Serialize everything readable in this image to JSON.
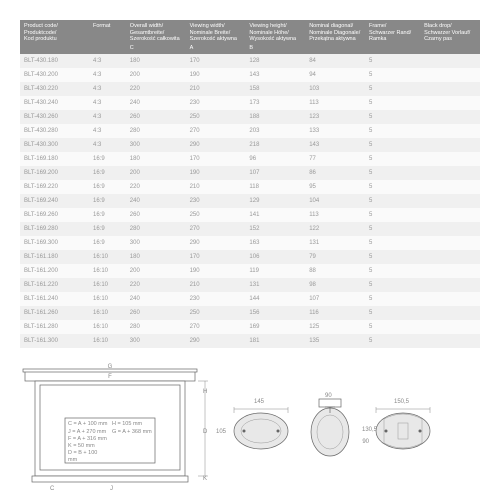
{
  "columns": [
    "Product code/\nProduktcode/\nKod produktu",
    "Format",
    "Overall width/\nGesamtbreite/\nSzerokość całkowita",
    "Viewing width/\nNominale Breite/\nSzerokość aktywna",
    "Viewing height/\nNominale Höhe/\nWysokość aktywna",
    "Nominal diagonal/\nNominale Diagonale/\nPrzekątna aktywna",
    "Frame/\nSchwarzer Rand/\nRamka",
    "Black drop/\nSchwarzer Vorlauf/\nCzarny pas"
  ],
  "subheader": [
    "",
    "",
    "C",
    "A",
    "B",
    "",
    "",
    ""
  ],
  "rows": [
    [
      "BLT-430.180",
      "4:3",
      "180",
      "170",
      "128",
      "84",
      "5",
      ""
    ],
    [
      "BLT-430.200",
      "4:3",
      "200",
      "190",
      "143",
      "94",
      "5",
      ""
    ],
    [
      "BLT-430.220",
      "4:3",
      "220",
      "210",
      "158",
      "103",
      "5",
      ""
    ],
    [
      "BLT-430.240",
      "4:3",
      "240",
      "230",
      "173",
      "113",
      "5",
      ""
    ],
    [
      "BLT-430.260",
      "4:3",
      "260",
      "250",
      "188",
      "123",
      "5",
      ""
    ],
    [
      "BLT-430.280",
      "4:3",
      "280",
      "270",
      "203",
      "133",
      "5",
      ""
    ],
    [
      "BLT-430.300",
      "4:3",
      "300",
      "290",
      "218",
      "143",
      "5",
      ""
    ],
    [
      "BLT-169.180",
      "16:9",
      "180",
      "170",
      "96",
      "77",
      "5",
      ""
    ],
    [
      "BLT-169.200",
      "16:9",
      "200",
      "190",
      "107",
      "86",
      "5",
      ""
    ],
    [
      "BLT-169.220",
      "16:9",
      "220",
      "210",
      "118",
      "95",
      "5",
      ""
    ],
    [
      "BLT-169.240",
      "16:9",
      "240",
      "230",
      "129",
      "104",
      "5",
      ""
    ],
    [
      "BLT-169.260",
      "16:9",
      "260",
      "250",
      "141",
      "113",
      "5",
      ""
    ],
    [
      "BLT-169.280",
      "16:9",
      "280",
      "270",
      "152",
      "122",
      "5",
      ""
    ],
    [
      "BLT-169.300",
      "16:9",
      "300",
      "290",
      "163",
      "131",
      "5",
      ""
    ],
    [
      "BLT-161.180",
      "16:10",
      "180",
      "170",
      "106",
      "79",
      "5",
      ""
    ],
    [
      "BLT-161.200",
      "16:10",
      "200",
      "190",
      "119",
      "88",
      "5",
      ""
    ],
    [
      "BLT-161.220",
      "16:10",
      "220",
      "210",
      "131",
      "98",
      "5",
      ""
    ],
    [
      "BLT-161.240",
      "16:10",
      "240",
      "230",
      "144",
      "107",
      "5",
      ""
    ],
    [
      "BLT-161.260",
      "16:10",
      "260",
      "250",
      "156",
      "116",
      "5",
      ""
    ],
    [
      "BLT-161.280",
      "16:10",
      "280",
      "270",
      "169",
      "125",
      "5",
      ""
    ],
    [
      "BLT-161.300",
      "16:10",
      "300",
      "290",
      "181",
      "135",
      "5",
      ""
    ]
  ],
  "formulas": [
    "C = A + 100 mm",
    "H = 105 mm",
    "J = A + 270 mm",
    "G = A + 368 mm",
    "F = A + 316 mm",
    "",
    "K = 50 mm",
    "",
    "D = B + 100 mm",
    ""
  ],
  "dims": {
    "w1": "145",
    "h1": "105",
    "w2": "90",
    "h2": "130,5",
    "h2b": "90",
    "w3": "150,5"
  },
  "colors": {
    "header_bg": "#888888",
    "header_fg": "#ffffff",
    "row_odd": "#f0f0f0",
    "row_even": "#fafafa",
    "text": "#999999",
    "stroke": "#666666"
  }
}
